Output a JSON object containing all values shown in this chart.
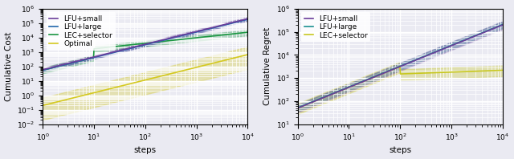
{
  "left_plot": {
    "xlabel": "steps",
    "ylabel": "Cumulative Cost",
    "xlim": [
      1.0,
      10000.0
    ],
    "ylim": [
      0.01,
      1000000.0
    ],
    "series": {
      "lfu_small": {
        "label": "LFU+small",
        "color": "#6a3d9a",
        "fill_alpha": 0.25
      },
      "lfu_large": {
        "label": "LFU+large",
        "color": "#2166ac",
        "fill_alpha": 0.25
      },
      "lec_selector": {
        "label": "LEC+selector",
        "color": "#1a9641",
        "fill_alpha": 0.25
      },
      "optimal": {
        "label": "Optimal",
        "color": "#d4c920",
        "fill_alpha": 0.3
      }
    }
  },
  "right_plot": {
    "xlabel": "steps",
    "ylabel": "Cumulative Regret",
    "xlim": [
      1.0,
      10000.0
    ],
    "ylim": [
      10.0,
      1000000.0
    ],
    "series": {
      "lfu_small": {
        "label": "LFU+small",
        "color": "#6a3d9a",
        "fill_alpha": 0.25
      },
      "lfu_large": {
        "label": "LFU+large",
        "color": "#1a9090",
        "fill_alpha": 0.25
      },
      "lec_selector": {
        "label": "LEC+selector",
        "color": "#c8c820",
        "fill_alpha": 0.3
      }
    }
  },
  "bg_color": "#eaeaf2",
  "grid_color": "white",
  "legend_fontsize": 6.5,
  "tick_fontsize": 6.5,
  "label_fontsize": 7.5,
  "linewidth": 1.2
}
